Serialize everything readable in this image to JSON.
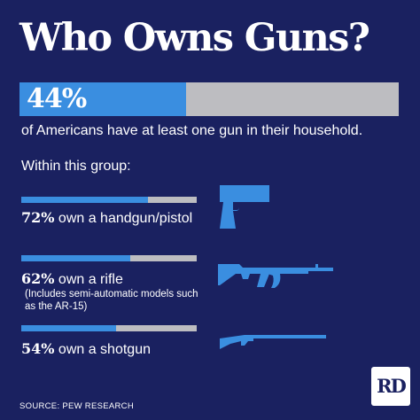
{
  "title": "Who Owns Guns?",
  "headline": {
    "percent_label": "44%",
    "value": 44,
    "caption": "of Americans have at least one gun in their household."
  },
  "group_intro": "Within this group:",
  "items": [
    {
      "percent_label": "72%",
      "value": 72,
      "text": " own a handgun/pistol",
      "icon": "handgun-icon"
    },
    {
      "percent_label": "62%",
      "value": 62,
      "text": " own a rifle",
      "note": "(Includes semi-automatic models such as the AR-15)",
      "icon": "rifle-icon"
    },
    {
      "percent_label": "54%",
      "value": 54,
      "text": " own a shotgun",
      "icon": "shotgun-icon"
    }
  ],
  "source": "SOURCE: PEW RESEARCH",
  "logo": "RD",
  "colors": {
    "background": "#1a2160",
    "bar_fill": "#3a8ee0",
    "bar_track": "#bdbdc1",
    "text": "#ffffff"
  },
  "chart_data": {
    "type": "bar",
    "title": "Who Owns Guns?",
    "categories": [
      "at least one gun in their household",
      "own a handgun/pistol",
      "own a rifle",
      "own a shotgun"
    ],
    "values": [
      44,
      72,
      62,
      54
    ],
    "ylim": [
      0,
      100
    ],
    "grid": false,
    "legend": "none"
  }
}
